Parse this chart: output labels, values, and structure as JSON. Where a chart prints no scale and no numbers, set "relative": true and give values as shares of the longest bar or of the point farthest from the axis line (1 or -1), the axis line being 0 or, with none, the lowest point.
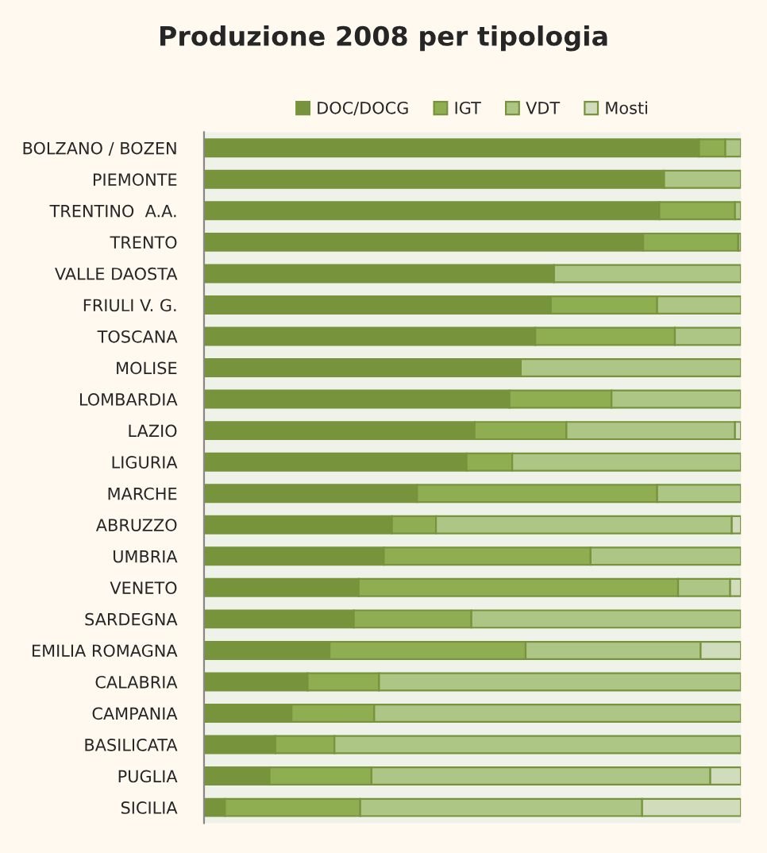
{
  "chart_data": {
    "type": "bar",
    "orientation": "horizontal",
    "stacked": true,
    "relative": true,
    "title": "Produzione 2008 per tipologia",
    "legend": "top",
    "categories": [
      "BOLZANO / BOZEN",
      "PIEMONTE",
      "TRENTINO  A.A.",
      "TRENTO",
      "VALLE DAOSTA",
      "FRIULI V. G.",
      "TOSCANA",
      "MOLISE",
      "LOMBARDIA",
      "LAZIO",
      "LIGURIA",
      "MARCHE",
      "ABRUZZO",
      "UMBRIA",
      "VENETO",
      "SARDEGNA",
      "EMILIA ROMAGNA",
      "CALABRIA",
      "CAMPANIA",
      "BASILICATA",
      "PUGLIA",
      "SICILIA"
    ],
    "series": [
      {
        "name": "DOC/DOCG",
        "color": "#77933c",
        "values": [
          0.922,
          0.857,
          0.848,
          0.818,
          0.652,
          0.646,
          0.617,
          0.59,
          0.569,
          0.504,
          0.489,
          0.397,
          0.35,
          0.335,
          0.288,
          0.279,
          0.234,
          0.193,
          0.163,
          0.133,
          0.122,
          0.039
        ]
      },
      {
        "name": "IGT",
        "color": "#8fae52",
        "values": [
          0.049,
          null,
          0.141,
          0.177,
          null,
          0.198,
          0.26,
          null,
          0.19,
          0.171,
          0.085,
          0.447,
          0.082,
          0.385,
          0.595,
          0.219,
          0.365,
          0.133,
          0.154,
          0.11,
          0.19,
          0.252
        ]
      },
      {
        "name": "VDT",
        "color": "#adc686",
        "values": [
          0.029,
          0.143,
          0.011,
          0.005,
          0.348,
          0.156,
          0.123,
          0.41,
          0.241,
          0.314,
          0.426,
          0.156,
          0.551,
          0.28,
          0.097,
          0.502,
          0.326,
          0.674,
          0.683,
          0.757,
          0.631,
          0.525
        ]
      },
      {
        "name": "Mosti",
        "color": "#d0dcbc",
        "values": [
          null,
          null,
          null,
          null,
          null,
          null,
          null,
          null,
          null,
          0.011,
          null,
          null,
          0.017,
          null,
          0.02,
          null,
          0.075,
          null,
          null,
          null,
          0.057,
          0.184
        ]
      }
    ]
  }
}
